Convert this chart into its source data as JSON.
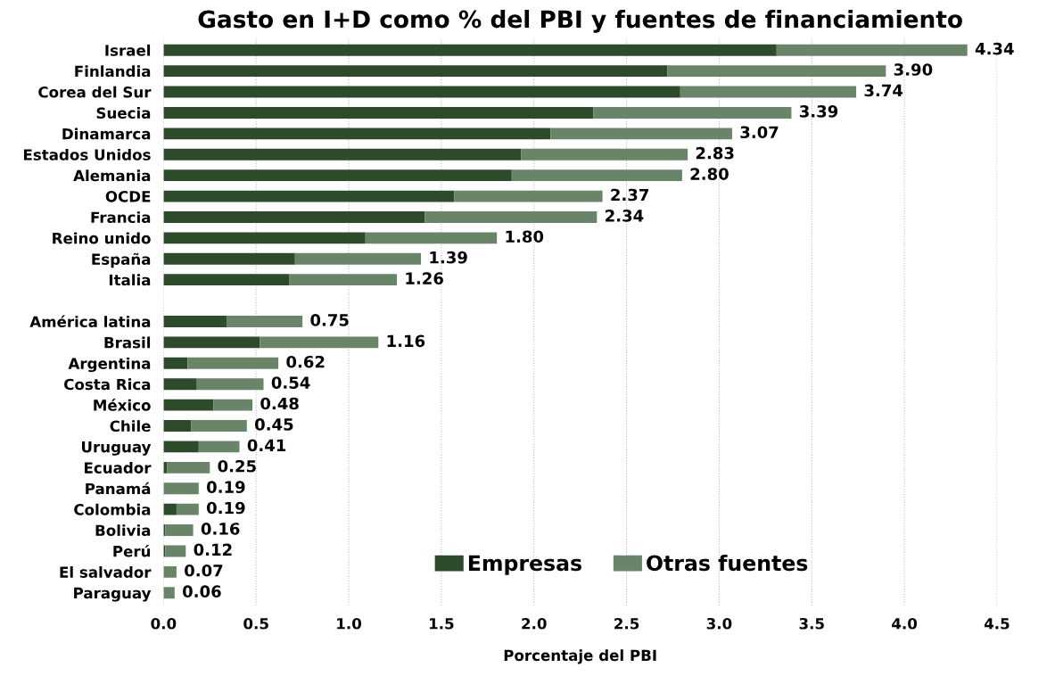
{
  "chart_data": {
    "type": "bar",
    "orientation": "horizontal",
    "stacked": true,
    "title": "Gasto en I+D como % del PBI y fuentes de financiamiento",
    "xlabel": "Porcentaje del PBI",
    "categories": [
      "Israel",
      "Finlandia",
      "Corea del Sur",
      "Suecia",
      "Dinamarca",
      "Estados Unidos",
      "Alemania",
      "OCDE",
      "Francia",
      "Reino unido",
      "España",
      "Italia",
      null,
      "América latina",
      "Brasil",
      "Argentina",
      "Costa Rica",
      "México",
      "Chile",
      "Uruguay",
      "Ecuador",
      "Panamá",
      "Colombia",
      "Bolivia",
      "Perú",
      "El salvador",
      "Paraguay"
    ],
    "series": [
      {
        "name": "Empresas",
        "color": "#2d4a2b",
        "values": [
          3.31,
          2.72,
          2.79,
          2.32,
          2.09,
          1.93,
          1.88,
          1.57,
          1.41,
          1.09,
          0.71,
          0.68,
          null,
          0.34,
          0.52,
          0.13,
          0.18,
          0.27,
          0.15,
          0.19,
          0.02,
          0,
          0.07,
          0.01,
          0.01,
          0,
          0
        ]
      },
      {
        "name": "Otras fuentes",
        "color": "#6a8469",
        "values": [
          1.03,
          1.18,
          0.95,
          1.07,
          0.98,
          0.9,
          0.92,
          0.8,
          0.93,
          0.71,
          0.68,
          0.58,
          null,
          0.41,
          0.64,
          0.49,
          0.36,
          0.21,
          0.3,
          0.22,
          0.23,
          0.19,
          0.12,
          0.15,
          0.11,
          0.07,
          0.06
        ]
      }
    ],
    "totals": [
      "4.34",
      "3.90",
      "3.74",
      "3.39",
      "3.07",
      "2.83",
      "2.80",
      "2.37",
      "2.34",
      "1.80",
      "1.39",
      "1.26",
      null,
      "0.75",
      "1.16",
      "0.62",
      "0.54",
      "0.48",
      "0.45",
      "0.41",
      "0.25",
      "0.19",
      "0.19",
      "0.16",
      "0.12",
      "0.07",
      "0.06"
    ],
    "xlim": [
      0,
      4.5
    ],
    "xticks": [
      {
        "value": 0,
        "label": "0.0"
      },
      {
        "value": 0.5,
        "label": "0.5"
      },
      {
        "value": 1,
        "label": "1.0"
      },
      {
        "value": 1.5,
        "label": "1.5"
      },
      {
        "value": 2,
        "label": "2.0"
      },
      {
        "value": 2.5,
        "label": "2.5"
      },
      {
        "value": 3,
        "label": "3.0"
      },
      {
        "value": 3.5,
        "label": "3.5"
      },
      {
        "value": 4,
        "label": "4.0"
      },
      {
        "value": 4.5,
        "label": "4.5"
      }
    ],
    "grid": "x",
    "legend": "bottom"
  }
}
